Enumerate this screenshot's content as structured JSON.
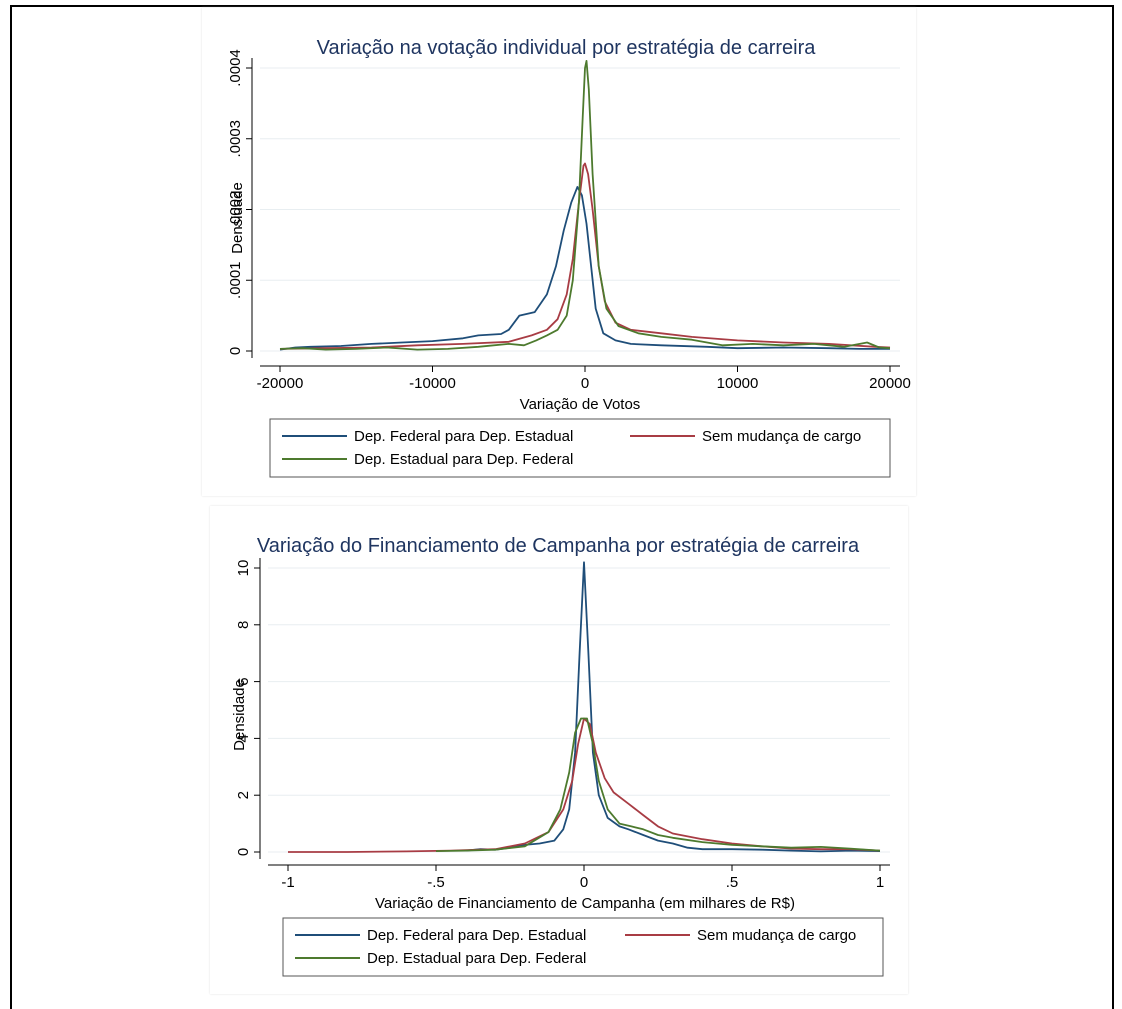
{
  "chart_data": [
    {
      "type": "line",
      "title": "Variação na votação individual por estratégia de carreira",
      "xlabel": "Variação de Votos",
      "ylabel": "Densidade",
      "xlim": [
        -20000,
        20000
      ],
      "ylim": [
        0,
        0.0004
      ],
      "xticks": [
        -20000,
        -10000,
        0,
        10000,
        20000
      ],
      "xtick_labels": [
        "-20000",
        "-10000",
        "0",
        "10000",
        "20000"
      ],
      "yticks": [
        0,
        0.0001,
        0.0002,
        0.0003,
        0.0004
      ],
      "ytick_labels": [
        "0",
        ".0001",
        ".0002",
        ".0003",
        ".0004"
      ],
      "grid": true,
      "legend_position": "bottom",
      "series": [
        {
          "name": "Dep. Federal para Dep. Estadual",
          "color": "#1f4e79",
          "points": [
            [
              -20000,
              2e-06
            ],
            [
              -19000,
              5e-06
            ],
            [
              -18000,
              6e-06
            ],
            [
              -16000,
              7e-06
            ],
            [
              -14000,
              1e-05
            ],
            [
              -12000,
              1.2e-05
            ],
            [
              -10000,
              1.4e-05
            ],
            [
              -8000,
              1.8e-05
            ],
            [
              -7000,
              2.2e-05
            ],
            [
              -5500,
              2.4e-05
            ],
            [
              -5000,
              3e-05
            ],
            [
              -4300,
              5e-05
            ],
            [
              -3300,
              5.5e-05
            ],
            [
              -2500,
              8e-05
            ],
            [
              -1900,
              0.00012
            ],
            [
              -1400,
              0.00017
            ],
            [
              -900,
              0.00021
            ],
            [
              -500,
              0.000232
            ],
            [
              -200,
              0.00022
            ],
            [
              100,
              0.00018
            ],
            [
              400,
              0.00012
            ],
            [
              700,
              6e-05
            ],
            [
              1200,
              2.5e-05
            ],
            [
              2000,
              1.5e-05
            ],
            [
              3000,
              1e-05
            ],
            [
              5000,
              8e-06
            ],
            [
              8000,
              6e-06
            ],
            [
              10000,
              4e-06
            ],
            [
              13000,
              5e-06
            ],
            [
              16000,
              4e-06
            ],
            [
              18000,
              3e-06
            ],
            [
              20000,
              3e-06
            ]
          ]
        },
        {
          "name": "Sem mudança de cargo",
          "color": "#a83c44",
          "points": [
            [
              -20000,
              3e-06
            ],
            [
              -17000,
              4e-06
            ],
            [
              -14000,
              5e-06
            ],
            [
              -11000,
              8e-06
            ],
            [
              -8000,
              1e-05
            ],
            [
              -5000,
              1.3e-05
            ],
            [
              -3500,
              2.2e-05
            ],
            [
              -2500,
              3e-05
            ],
            [
              -1800,
              4.5e-05
            ],
            [
              -1200,
              8e-05
            ],
            [
              -800,
              0.00013
            ],
            [
              -400,
              0.00021
            ],
            [
              -100,
              0.000262
            ],
            [
              0,
              0.000265
            ],
            [
              200,
              0.00025
            ],
            [
              500,
              0.0002
            ],
            [
              900,
              0.00012
            ],
            [
              1300,
              7e-05
            ],
            [
              2000,
              4e-05
            ],
            [
              3000,
              3e-05
            ],
            [
              5000,
              2.5e-05
            ],
            [
              7000,
              2e-05
            ],
            [
              10000,
              1.5e-05
            ],
            [
              13000,
              1.2e-05
            ],
            [
              16000,
              1e-05
            ],
            [
              19000,
              6e-06
            ],
            [
              20000,
              5e-06
            ]
          ]
        },
        {
          "name": "Dep. Estadual para Dep. Federal",
          "color": "#4d7a2e",
          "points": [
            [
              -20000,
              3e-06
            ],
            [
              -18500,
              4e-06
            ],
            [
              -17000,
              2e-06
            ],
            [
              -15000,
              3e-06
            ],
            [
              -13000,
              5e-06
            ],
            [
              -11000,
              2e-06
            ],
            [
              -9000,
              3e-06
            ],
            [
              -7000,
              6e-06
            ],
            [
              -5000,
              1e-05
            ],
            [
              -4000,
              8e-06
            ],
            [
              -3200,
              1.5e-05
            ],
            [
              -2500,
              2.2e-05
            ],
            [
              -1800,
              3e-05
            ],
            [
              -1200,
              5e-05
            ],
            [
              -800,
              0.0001
            ],
            [
              -400,
              0.00021
            ],
            [
              -150,
              0.00033
            ],
            [
              0,
              0.0004
            ],
            [
              100,
              0.00041
            ],
            [
              250,
              0.00037
            ],
            [
              500,
              0.00025
            ],
            [
              900,
              0.00012
            ],
            [
              1400,
              6e-05
            ],
            [
              2200,
              3.5e-05
            ],
            [
              3500,
              2.5e-05
            ],
            [
              5000,
              2e-05
            ],
            [
              7000,
              1.6e-05
            ],
            [
              9000,
              8e-06
            ],
            [
              11000,
              1e-05
            ],
            [
              13000,
              8e-06
            ],
            [
              15000,
              1e-05
            ],
            [
              17000,
              6e-06
            ],
            [
              18500,
              1.2e-05
            ],
            [
              19300,
              5e-06
            ],
            [
              20000,
              4e-06
            ]
          ]
        }
      ]
    },
    {
      "type": "line",
      "title": "Variação do Financiamento de Campanha por estratégia de carreira",
      "xlabel": "Variação de Financiamento de Campanha (em milhares de R$)",
      "ylabel": "Densidade",
      "xlim": [
        -1,
        1
      ],
      "ylim": [
        0,
        10
      ],
      "xticks": [
        -1,
        -0.5,
        0,
        0.5,
        1
      ],
      "xtick_labels": [
        "-1",
        "-.5",
        "0",
        ".5",
        "1"
      ],
      "yticks": [
        0,
        2,
        4,
        6,
        8,
        10
      ],
      "ytick_labels": [
        "0",
        "2",
        "4",
        "6",
        "8",
        "10"
      ],
      "grid": true,
      "legend_position": "bottom",
      "series": [
        {
          "name": "Dep. Federal para Dep. Estadual",
          "color": "#1f4e79",
          "points": [
            [
              -0.4,
              0.05
            ],
            [
              -0.35,
              0.1
            ],
            [
              -0.3,
              0.08
            ],
            [
              -0.25,
              0.15
            ],
            [
              -0.2,
              0.25
            ],
            [
              -0.15,
              0.3
            ],
            [
              -0.1,
              0.4
            ],
            [
              -0.07,
              0.8
            ],
            [
              -0.05,
              1.5
            ],
            [
              -0.03,
              3.5
            ],
            [
              -0.015,
              7
            ],
            [
              0,
              10.2
            ],
            [
              0.015,
              7
            ],
            [
              0.03,
              3.5
            ],
            [
              0.05,
              2
            ],
            [
              0.08,
              1.2
            ],
            [
              0.12,
              0.9
            ],
            [
              0.15,
              0.8
            ],
            [
              0.2,
              0.6
            ],
            [
              0.25,
              0.4
            ],
            [
              0.3,
              0.3
            ],
            [
              0.35,
              0.15
            ],
            [
              0.4,
              0.1
            ],
            [
              0.5,
              0.1
            ],
            [
              0.6,
              0.08
            ],
            [
              0.7,
              0.05
            ],
            [
              0.8,
              0.02
            ],
            [
              0.9,
              0.05
            ],
            [
              1,
              0.03
            ]
          ]
        },
        {
          "name": "Sem mudança de cargo",
          "color": "#a83c44",
          "points": [
            [
              -1,
              0.0
            ],
            [
              -0.8,
              0.0
            ],
            [
              -0.6,
              0.02
            ],
            [
              -0.45,
              0.05
            ],
            [
              -0.3,
              0.1
            ],
            [
              -0.2,
              0.3
            ],
            [
              -0.12,
              0.7
            ],
            [
              -0.07,
              1.5
            ],
            [
              -0.04,
              2.5
            ],
            [
              -0.02,
              3.8
            ],
            [
              0,
              4.7
            ],
            [
              0.02,
              4.5
            ],
            [
              0.04,
              3.5
            ],
            [
              0.07,
              2.6
            ],
            [
              0.1,
              2.1
            ],
            [
              0.15,
              1.7
            ],
            [
              0.2,
              1.3
            ],
            [
              0.25,
              0.9
            ],
            [
              0.3,
              0.65
            ],
            [
              0.4,
              0.45
            ],
            [
              0.5,
              0.3
            ],
            [
              0.6,
              0.2
            ],
            [
              0.7,
              0.12
            ],
            [
              0.8,
              0.1
            ],
            [
              0.9,
              0.1
            ],
            [
              1,
              0.05
            ]
          ]
        },
        {
          "name": "Dep. Estadual para Dep. Federal",
          "color": "#4d7a2e",
          "points": [
            [
              -0.5,
              0.03
            ],
            [
              -0.4,
              0.05
            ],
            [
              -0.3,
              0.08
            ],
            [
              -0.2,
              0.2
            ],
            [
              -0.12,
              0.7
            ],
            [
              -0.08,
              1.5
            ],
            [
              -0.05,
              2.8
            ],
            [
              -0.03,
              4.2
            ],
            [
              -0.01,
              4.7
            ],
            [
              0.01,
              4.7
            ],
            [
              0.03,
              3.8
            ],
            [
              0.05,
              2.5
            ],
            [
              0.08,
              1.5
            ],
            [
              0.12,
              1.0
            ],
            [
              0.16,
              0.9
            ],
            [
              0.2,
              0.8
            ],
            [
              0.25,
              0.6
            ],
            [
              0.3,
              0.5
            ],
            [
              0.4,
              0.35
            ],
            [
              0.5,
              0.25
            ],
            [
              0.6,
              0.2
            ],
            [
              0.7,
              0.15
            ],
            [
              0.8,
              0.18
            ],
            [
              0.9,
              0.12
            ],
            [
              1,
              0.05
            ]
          ]
        }
      ]
    }
  ]
}
